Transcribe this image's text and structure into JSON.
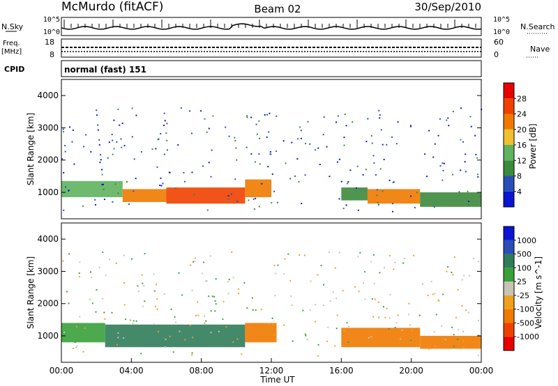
{
  "header": {
    "station": "McMurdo (fitACF)",
    "beam": "Beam 02",
    "date": "30/Sep/2010"
  },
  "side_labels": {
    "nsky": "N.Sky",
    "nsearch": "N.Search",
    "freq": "Freq.",
    "freq_unit": "[MHz]",
    "nave": "Nave",
    "cpid": "CPID"
  },
  "cpid_text": "normal (fast) 151",
  "noise_panel": {
    "left_ticks": [
      "10^5",
      "10^0"
    ],
    "right_ticks": [
      "10^5",
      "10^0"
    ]
  },
  "freq_panel": {
    "left_ticks": [
      "18",
      "8"
    ],
    "right_ticks": [
      "60",
      "0"
    ]
  },
  "colors": {
    "power": [
      "#0a14d2",
      "#2a4db8",
      "#3c8a3c",
      "#5fb35f",
      "#f0c030",
      "#f07a00",
      "#f04000",
      "#e60000"
    ],
    "velocity": [
      "#e60000",
      "#f04000",
      "#f07a00",
      "#f0a020",
      "#c8c4b4",
      "#3aa03a",
      "#2f7c5a",
      "#2a4db8",
      "#0a14d2"
    ]
  },
  "chart_data": [
    {
      "type": "heatmap",
      "name": "power",
      "ylabel": "Slant Range [km]",
      "y_ticks": [
        "1000",
        "2000",
        "3000",
        "4000"
      ],
      "ylim": [
        180,
        4500
      ],
      "colorbar_label": "Power [dB]",
      "colorbar_ticks": [
        "4",
        "8",
        "12",
        "16",
        "20",
        "24",
        "28"
      ],
      "clim": [
        0,
        32
      ],
      "cells": [
        {
          "t0": 0.0,
          "t1": 3.5,
          "r0": 850,
          "r1": 1350,
          "v": 13
        },
        {
          "t0": 3.5,
          "t1": 6.0,
          "r0": 700,
          "r1": 1100,
          "v": 20
        },
        {
          "t0": 6.0,
          "t1": 10.5,
          "r0": 650,
          "r1": 1150,
          "v": 25
        },
        {
          "t0": 10.5,
          "t1": 12.0,
          "r0": 850,
          "r1": 1400,
          "v": 22
        },
        {
          "t0": 16.0,
          "t1": 17.5,
          "r0": 750,
          "r1": 1150,
          "v": 11
        },
        {
          "t0": 17.5,
          "t1": 20.5,
          "r0": 650,
          "r1": 1100,
          "v": 20
        },
        {
          "t0": 20.5,
          "t1": 24.0,
          "r0": 550,
          "r1": 1000,
          "v": 9
        }
      ]
    },
    {
      "type": "heatmap",
      "name": "velocity",
      "ylabel": "Slant Range [km]",
      "y_ticks": [
        "1000",
        "2000",
        "3000",
        "4000"
      ],
      "ylim": [
        180,
        4500
      ],
      "colorbar_label": "Velocity [m s^-1]",
      "colorbar_ticks": [
        "1000",
        "500",
        "100",
        "25",
        "-25",
        "-100",
        "-500",
        "-1000"
      ],
      "cells": [
        {
          "t0": 0.0,
          "t1": 2.5,
          "r0": 800,
          "r1": 1400,
          "v": 80
        },
        {
          "t0": 2.5,
          "t1": 10.5,
          "r0": 650,
          "r1": 1350,
          "v": 150
        },
        {
          "t0": 10.5,
          "t1": 12.3,
          "r0": 800,
          "r1": 1400,
          "v": -150
        },
        {
          "t0": 16.0,
          "t1": 20.5,
          "r0": 650,
          "r1": 1250,
          "v": -150
        },
        {
          "t0": 20.5,
          "t1": 24.0,
          "r0": 600,
          "r1": 1000,
          "v": -300
        }
      ]
    }
  ],
  "x_axis": {
    "label": "Time UT",
    "ticks": [
      "00:00",
      "04:00",
      "08:00",
      "12:00",
      "16:00",
      "20:00",
      "00:00"
    ],
    "xlim": [
      0,
      24
    ]
  }
}
